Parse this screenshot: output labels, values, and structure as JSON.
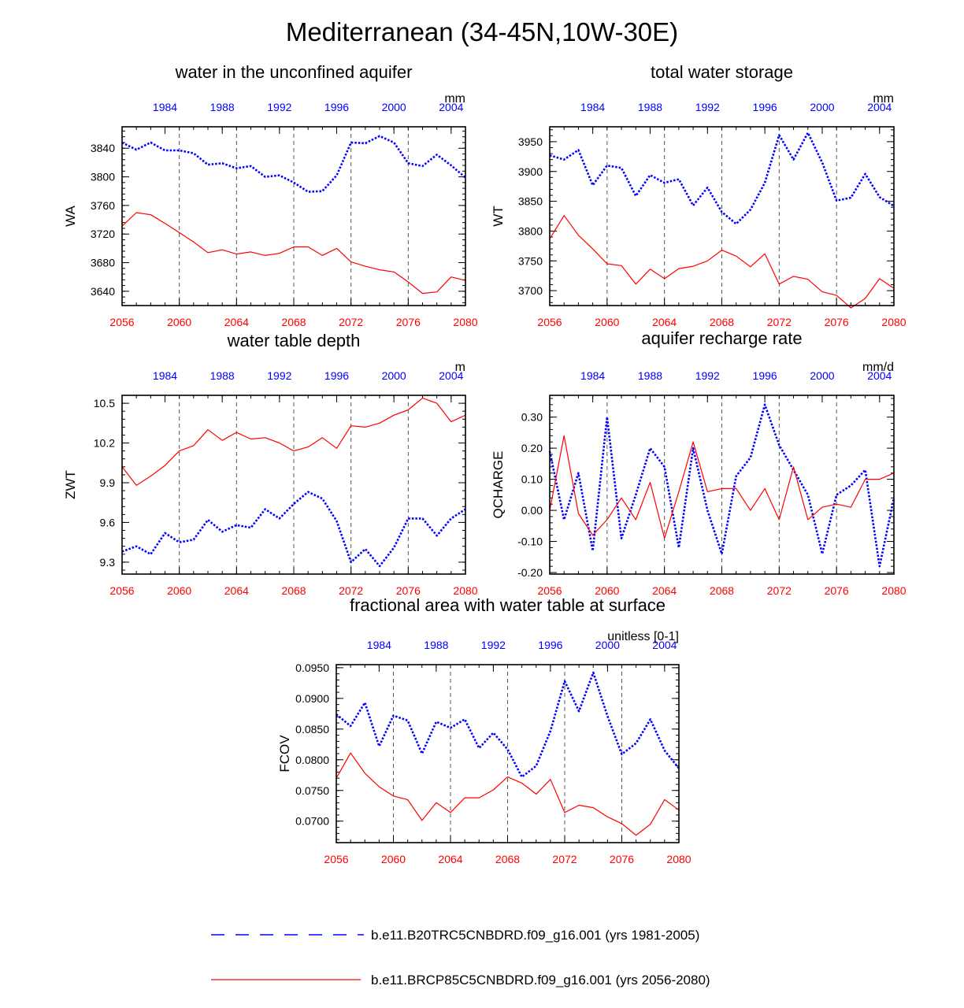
{
  "title": "Mediterranean (34-45N,10W-30E)",
  "colors": {
    "blue": "#0000ff",
    "red": "#ff0000",
    "grid": "#555555",
    "axis": "#000000"
  },
  "legend": {
    "blue": "b.e11.B20TRC5CNBDRD.f09_g16.001 (yrs 1981-2005)",
    "red": "b.e11.BRCP85C5CNBDRD.f09_g16.001 (yrs 2056-2080)"
  },
  "chart_data": [
    {
      "type": "line",
      "title": "water in the unconfined aquifer",
      "ylabel": "WA",
      "units": "mm",
      "x_bottom": {
        "range": [
          2056,
          2080
        ],
        "ticks": [
          2056,
          2060,
          2064,
          2068,
          2072,
          2076,
          2080
        ]
      },
      "x_top": {
        "range": [
          1981,
          2005
        ],
        "ticks": [
          1984,
          1988,
          1992,
          1996,
          2000,
          2004
        ]
      },
      "ylim": [
        3620,
        3870
      ],
      "yticks": [
        3640,
        3680,
        3720,
        3760,
        3800,
        3840
      ],
      "ytick_labels": [
        "3640",
        "3680",
        "3720",
        "3760",
        "3800",
        "3840"
      ],
      "series": [
        {
          "name": "b.e11.B20TRC5CNBDRD.f09_g16.001 (yrs 1981-2005)",
          "color": "blue",
          "style": "dotted",
          "values": [
            3848,
            3838,
            3848,
            3837,
            3837,
            3833,
            3817,
            3819,
            3812,
            3815,
            3800,
            3802,
            3792,
            3779,
            3780,
            3802,
            3848,
            3847,
            3857,
            3848,
            3819,
            3815,
            3831,
            3816,
            3799
          ]
        },
        {
          "name": "b.e11.BRCP85C5CNBDRD.f09_g16.001 (yrs 2056-2080)",
          "color": "red",
          "style": "solid",
          "values": [
            3731,
            3750,
            3747,
            3735,
            3722,
            3709,
            3694,
            3698,
            3692,
            3695,
            3690,
            3693,
            3702,
            3702,
            3690,
            3700,
            3681,
            3675,
            3670,
            3667,
            3653,
            3637,
            3639,
            3660,
            3655
          ]
        }
      ]
    },
    {
      "type": "line",
      "title": "total water storage",
      "ylabel": "WT",
      "units": "mm",
      "x_bottom": {
        "range": [
          2056,
          2080
        ],
        "ticks": [
          2056,
          2060,
          2064,
          2068,
          2072,
          2076,
          2080
        ]
      },
      "x_top": {
        "range": [
          1981,
          2005
        ],
        "ticks": [
          1984,
          1988,
          1992,
          1996,
          2000,
          2004
        ]
      },
      "ylim": [
        3675,
        3975
      ],
      "yticks": [
        3700,
        3750,
        3800,
        3850,
        3900,
        3950
      ],
      "ytick_labels": [
        "3700",
        "3750",
        "3800",
        "3850",
        "3900",
        "3950"
      ],
      "series": [
        {
          "name": "b.e11.B20TRC5CNBDRD.f09_g16.001 (yrs 1981-2005)",
          "color": "blue",
          "style": "dotted",
          "values": [
            3927,
            3920,
            3936,
            3877,
            3910,
            3906,
            3859,
            3894,
            3881,
            3887,
            3843,
            3873,
            3832,
            3812,
            3836,
            3881,
            3961,
            3920,
            3965,
            3915,
            3851,
            3856,
            3896,
            3857,
            3842
          ]
        },
        {
          "name": "b.e11.BRCP85C5CNBDRD.f09_g16.001 (yrs 2056-2080)",
          "color": "red",
          "style": "solid",
          "values": [
            3787,
            3826,
            3793,
            3770,
            3745,
            3742,
            3711,
            3736,
            3720,
            3737,
            3741,
            3750,
            3768,
            3758,
            3740,
            3762,
            3711,
            3724,
            3719,
            3698,
            3692,
            3671,
            3687,
            3720,
            3704
          ]
        }
      ]
    },
    {
      "type": "line",
      "title": "water table depth",
      "ylabel": "ZWT",
      "units": "m",
      "x_bottom": {
        "range": [
          2056,
          2080
        ],
        "ticks": [
          2056,
          2060,
          2064,
          2068,
          2072,
          2076,
          2080
        ]
      },
      "x_top": {
        "range": [
          1981,
          2005
        ],
        "ticks": [
          1984,
          1988,
          1992,
          1996,
          2000,
          2004
        ]
      },
      "ylim": [
        9.21,
        10.56
      ],
      "yticks": [
        9.3,
        9.6,
        9.9,
        10.2,
        10.5
      ],
      "ytick_labels": [
        "9.3",
        "9.6",
        "9.9",
        "10.2",
        "10.5"
      ],
      "series": [
        {
          "name": "b.e11.B20TRC5CNBDRD.f09_g16.001 (yrs 1981-2005)",
          "color": "blue",
          "style": "dotted",
          "values": [
            9.38,
            9.42,
            9.36,
            9.52,
            9.45,
            9.47,
            9.62,
            9.53,
            9.58,
            9.56,
            9.7,
            9.63,
            9.74,
            9.83,
            9.78,
            9.61,
            9.3,
            9.4,
            9.27,
            9.41,
            9.63,
            9.63,
            9.5,
            9.63,
            9.7
          ]
        },
        {
          "name": "b.e11.BRCP85C5CNBDRD.f09_g16.001 (yrs 2056-2080)",
          "color": "red",
          "style": "solid",
          "values": [
            10.02,
            9.88,
            9.95,
            10.03,
            10.14,
            10.18,
            10.3,
            10.22,
            10.28,
            10.23,
            10.24,
            10.2,
            10.14,
            10.17,
            10.24,
            10.16,
            10.33,
            10.32,
            10.35,
            10.41,
            10.45,
            10.54,
            10.5,
            10.36,
            10.41
          ]
        }
      ]
    },
    {
      "type": "line",
      "title": "aquifer recharge rate",
      "ylabel": "QCHARGE",
      "units": "mm/d",
      "x_bottom": {
        "range": [
          2056,
          2080
        ],
        "ticks": [
          2056,
          2060,
          2064,
          2068,
          2072,
          2076,
          2080
        ]
      },
      "x_top": {
        "range": [
          1981,
          2005
        ],
        "ticks": [
          1984,
          1988,
          1992,
          1996,
          2000,
          2004
        ]
      },
      "ylim": [
        -0.205,
        0.37
      ],
      "yticks": [
        -0.2,
        -0.1,
        0.0,
        0.1,
        0.2,
        0.3
      ],
      "ytick_labels": [
        "-0.20",
        "-0.10",
        "0.00",
        "0.10",
        "0.20",
        "0.30"
      ],
      "series": [
        {
          "name": "b.e11.B20TRC5CNBDRD.f09_g16.001 (yrs 1981-2005)",
          "color": "blue",
          "style": "dotted",
          "values": [
            0.19,
            -0.03,
            0.12,
            -0.13,
            0.3,
            -0.09,
            0.05,
            0.2,
            0.14,
            -0.12,
            0.2,
            0.0,
            -0.14,
            0.11,
            0.17,
            0.34,
            0.21,
            0.13,
            0.05,
            -0.14,
            0.05,
            0.08,
            0.13,
            -0.18,
            0.04
          ]
        },
        {
          "name": "b.e11.BRCP85C5CNBDRD.f09_g16.001 (yrs 2056-2080)",
          "color": "red",
          "style": "solid",
          "values": [
            0.0,
            0.24,
            -0.01,
            -0.08,
            -0.03,
            0.04,
            -0.03,
            0.09,
            -0.09,
            0.06,
            0.22,
            0.06,
            0.07,
            0.07,
            0.0,
            0.07,
            -0.03,
            0.14,
            -0.03,
            0.01,
            0.02,
            0.01,
            0.1,
            0.1,
            0.12
          ]
        }
      ]
    },
    {
      "type": "line",
      "title": "fractional area with water table at surface",
      "ylabel": "FCOV",
      "units": "unitless [0-1]",
      "x_bottom": {
        "range": [
          2056,
          2080
        ],
        "ticks": [
          2056,
          2060,
          2064,
          2068,
          2072,
          2076,
          2080
        ]
      },
      "x_top": {
        "range": [
          1981,
          2005
        ],
        "ticks": [
          1984,
          1988,
          1992,
          1996,
          2000,
          2004
        ]
      },
      "ylim": [
        0.0665,
        0.0955
      ],
      "yticks": [
        0.07,
        0.075,
        0.08,
        0.085,
        0.09,
        0.095
      ],
      "ytick_labels": [
        "0.0700",
        "0.0750",
        "0.0800",
        "0.0850",
        "0.0900",
        "0.0950"
      ],
      "series": [
        {
          "name": "b.e11.B20TRC5CNBDRD.f09_g16.001 (yrs 1981-2005)",
          "color": "blue",
          "style": "dotted",
          "values": [
            0.0874,
            0.0855,
            0.0893,
            0.0822,
            0.0872,
            0.0864,
            0.081,
            0.0862,
            0.0852,
            0.0866,
            0.0819,
            0.0844,
            0.0817,
            0.0772,
            0.079,
            0.0847,
            0.0928,
            0.0879,
            0.0942,
            0.0871,
            0.0809,
            0.0827,
            0.0866,
            0.0815,
            0.0786
          ]
        },
        {
          "name": "b.e11.BRCP85C5CNBDRD.f09_g16.001 (yrs 2056-2080)",
          "color": "red",
          "style": "solid",
          "values": [
            0.077,
            0.0811,
            0.0778,
            0.0756,
            0.0741,
            0.0735,
            0.0701,
            0.073,
            0.0714,
            0.0738,
            0.0738,
            0.0751,
            0.0772,
            0.0762,
            0.0744,
            0.0768,
            0.0714,
            0.0726,
            0.0722,
            0.0707,
            0.0696,
            0.0677,
            0.0695,
            0.0735,
            0.0718
          ]
        }
      ]
    }
  ]
}
